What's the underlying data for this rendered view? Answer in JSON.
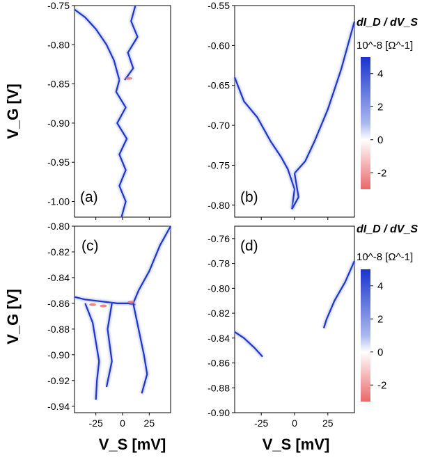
{
  "colorbar": {
    "title": "dI_D / dV_S",
    "unit": "10^-8 [Ω^-1]",
    "ticks": [
      4,
      2,
      0,
      -2
    ],
    "range": [
      -3,
      5
    ]
  },
  "axes_labels": {
    "vg": "V_G [V]",
    "vs": "V_S [mV]"
  },
  "chart_data": [
    {
      "id": "a",
      "label": "(a)",
      "type": "heatmap",
      "xlim": [
        -45,
        45
      ],
      "ylim": [
        -1.02,
        -0.75
      ],
      "xticks": [
        -25,
        0,
        25
      ],
      "xtick_labels": [],
      "yticks": [
        -0.75,
        -0.8,
        -0.85,
        -0.9,
        -0.95,
        -1.0
      ],
      "ytick_labels": [
        "-0.75",
        "-0.80",
        "-0.85",
        "-0.90",
        "-0.95",
        "-1.00"
      ],
      "ridges": [
        [
          [
            -45,
            -0.755
          ],
          [
            -35,
            -0.765
          ],
          [
            -25,
            -0.78
          ],
          [
            -15,
            -0.8
          ],
          [
            -8,
            -0.82
          ],
          [
            -3,
            -0.845
          ]
        ],
        [
          [
            12,
            -0.75
          ],
          [
            8,
            -0.77
          ],
          [
            14,
            -0.79
          ],
          [
            5,
            -0.81
          ],
          [
            10,
            -0.83
          ],
          [
            2,
            -0.845
          ]
        ],
        [
          [
            -3,
            -0.845
          ],
          [
            -6,
            -0.86
          ],
          [
            3,
            -0.88
          ],
          [
            -5,
            -0.9
          ],
          [
            4,
            -0.92
          ],
          [
            -3,
            -0.94
          ],
          [
            3,
            -0.96
          ],
          [
            -3,
            -0.98
          ],
          [
            3,
            -1.0
          ],
          [
            -1,
            -1.02
          ]
        ]
      ],
      "hot": [
        [
          6,
          -0.843
        ]
      ]
    },
    {
      "id": "b",
      "label": "(b)",
      "type": "heatmap",
      "xlim": [
        -45,
        45
      ],
      "ylim": [
        -0.815,
        -0.55
      ],
      "xticks": [
        -25,
        0,
        25
      ],
      "xtick_labels": [],
      "yticks": [
        -0.55,
        -0.6,
        -0.65,
        -0.7,
        -0.75,
        -0.8
      ],
      "ytick_labels": [
        "-0.55",
        "-0.60",
        "-0.65",
        "-0.70",
        "-0.75",
        "-0.80"
      ],
      "ridges": [
        [
          [
            -45,
            -0.64
          ],
          [
            -38,
            -0.67
          ],
          [
            -28,
            -0.69
          ],
          [
            -18,
            -0.72
          ],
          [
            -10,
            -0.74
          ],
          [
            -5,
            -0.755
          ],
          [
            0,
            -0.78
          ],
          [
            -2,
            -0.805
          ]
        ],
        [
          [
            45,
            -0.57
          ],
          [
            35,
            -0.63
          ],
          [
            25,
            -0.68
          ],
          [
            15,
            -0.72
          ],
          [
            8,
            -0.745
          ],
          [
            0,
            -0.76
          ]
        ],
        [
          [
            -2,
            -0.805
          ],
          [
            3,
            -0.79
          ],
          [
            0,
            -0.76
          ]
        ]
      ],
      "hot": []
    },
    {
      "id": "c",
      "label": "(c)",
      "type": "heatmap",
      "xlim": [
        -45,
        45
      ],
      "ylim": [
        -0.945,
        -0.8
      ],
      "xticks": [
        -25,
        0,
        25
      ],
      "xtick_labels": [
        "-25",
        "0",
        "25"
      ],
      "yticks": [
        -0.8,
        -0.82,
        -0.84,
        -0.86,
        -0.88,
        -0.9,
        -0.92,
        -0.94
      ],
      "ytick_labels": [
        "-0.80",
        "-0.82",
        "-0.84",
        "-0.86",
        "-0.88",
        "-0.90",
        "-0.92",
        "-0.94"
      ],
      "ridges": [
        [
          [
            -45,
            -0.855
          ],
          [
            -35,
            -0.857
          ],
          [
            -25,
            -0.858
          ],
          [
            -15,
            -0.859
          ],
          [
            -5,
            -0.86
          ],
          [
            5,
            -0.86
          ],
          [
            12,
            -0.861
          ]
        ],
        [
          [
            -35,
            -0.86
          ],
          [
            -28,
            -0.875
          ],
          [
            -25,
            -0.89
          ],
          [
            -22,
            -0.905
          ],
          [
            -24,
            -0.92
          ],
          [
            -25,
            -0.935
          ]
        ],
        [
          [
            45,
            -0.8
          ],
          [
            35,
            -0.815
          ],
          [
            25,
            -0.835
          ],
          [
            15,
            -0.85
          ],
          [
            10,
            -0.86
          ],
          [
            15,
            -0.88
          ],
          [
            20,
            -0.9
          ],
          [
            23,
            -0.915
          ],
          [
            18,
            -0.93
          ]
        ],
        [
          [
            -10,
            -0.86
          ],
          [
            -14,
            -0.88
          ],
          [
            -10,
            -0.905
          ],
          [
            -15,
            -0.925
          ]
        ]
      ],
      "hot": [
        [
          -28,
          -0.861
        ],
        [
          -18,
          -0.862
        ],
        [
          8,
          -0.859
        ]
      ]
    },
    {
      "id": "d",
      "label": "(d)",
      "type": "heatmap",
      "xlim": [
        -45,
        45
      ],
      "ylim": [
        -0.9,
        -0.75
      ],
      "xticks": [
        -25,
        0,
        25
      ],
      "xtick_labels": [
        "-25",
        "0",
        "25"
      ],
      "yticks": [
        -0.76,
        -0.78,
        -0.8,
        -0.82,
        -0.84,
        -0.86,
        -0.88,
        -0.9
      ],
      "ytick_labels": [
        "-0.76",
        "-0.78",
        "-0.80",
        "-0.82",
        "-0.84",
        "-0.86",
        "-0.88",
        "-0.90"
      ],
      "ridges": [
        [
          [
            45,
            -0.778
          ],
          [
            38,
            -0.795
          ],
          [
            30,
            -0.81
          ],
          [
            24,
            -0.825
          ],
          [
            22,
            -0.832
          ]
        ],
        [
          [
            -45,
            -0.835
          ],
          [
            -38,
            -0.84
          ],
          [
            -30,
            -0.848
          ],
          [
            -24,
            -0.855
          ]
        ]
      ],
      "hot": []
    }
  ]
}
